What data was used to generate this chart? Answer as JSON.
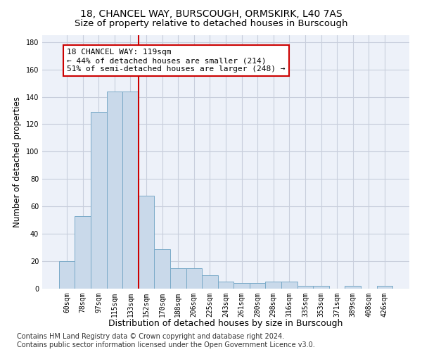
{
  "title1": "18, CHANCEL WAY, BURSCOUGH, ORMSKIRK, L40 7AS",
  "title2": "Size of property relative to detached houses in Burscough",
  "xlabel": "Distribution of detached houses by size in Burscough",
  "ylabel": "Number of detached properties",
  "categories": [
    "60sqm",
    "78sqm",
    "97sqm",
    "115sqm",
    "133sqm",
    "152sqm",
    "170sqm",
    "188sqm",
    "206sqm",
    "225sqm",
    "243sqm",
    "261sqm",
    "280sqm",
    "298sqm",
    "316sqm",
    "335sqm",
    "353sqm",
    "371sqm",
    "389sqm",
    "408sqm",
    "426sqm"
  ],
  "values": [
    20,
    53,
    129,
    144,
    144,
    68,
    29,
    15,
    15,
    10,
    5,
    4,
    4,
    5,
    5,
    2,
    2,
    0,
    2,
    0,
    2
  ],
  "bar_color": "#c9d9ea",
  "bar_edge_color": "#7aaac8",
  "red_line_x": 4.5,
  "annotation_text": "18 CHANCEL WAY: 119sqm\n← 44% of detached houses are smaller (214)\n51% of semi-detached houses are larger (248) →",
  "annotation_box_color": "#ffffff",
  "annotation_box_edge_color": "#cc0000",
  "red_line_color": "#cc0000",
  "ylim": [
    0,
    185
  ],
  "yticks": [
    0,
    20,
    40,
    60,
    80,
    100,
    120,
    140,
    160,
    180
  ],
  "grid_color": "#c8cedc",
  "background_color": "#edf1f9",
  "footer": "Contains HM Land Registry data © Crown copyright and database right 2024.\nContains public sector information licensed under the Open Government Licence v3.0.",
  "title1_fontsize": 10,
  "title2_fontsize": 9.5,
  "xlabel_fontsize": 9,
  "ylabel_fontsize": 8.5,
  "tick_fontsize": 7,
  "annotation_fontsize": 8,
  "footer_fontsize": 7
}
